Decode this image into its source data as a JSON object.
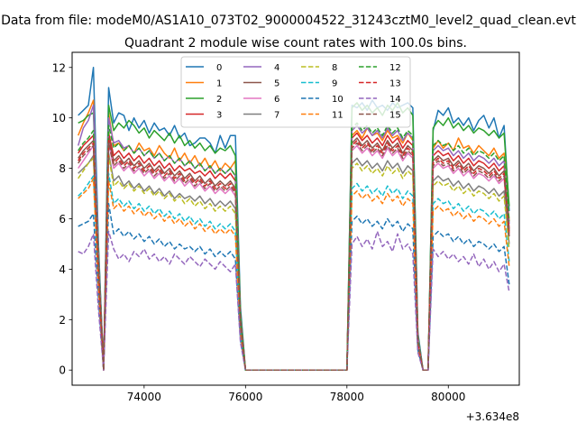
{
  "figure": {
    "suptitle": "Data from file: modeM0/AS1A10_073T02_9000004522_31243cztM0_level2_quad_clean.evt",
    "title": "Quadrant 2 module wise count rates with 100.0s bins.",
    "x_offset_label": "+3.634e8"
  },
  "chart_data": {
    "type": "line",
    "title": "Quadrant 2 module wise count rates with 100.0s bins.",
    "xlabel": "",
    "ylabel": "",
    "x_offset": 363400000,
    "xlim": [
      72580,
      81400
    ],
    "ylim": [
      -0.6,
      12.6
    ],
    "xticks": [
      74000,
      76000,
      78000,
      80000
    ],
    "xtick_labels": [
      "74000",
      "76000",
      "78000",
      "80000"
    ],
    "yticks": [
      0,
      2,
      4,
      6,
      8,
      10,
      12
    ],
    "ytick_labels": [
      "0",
      "2",
      "4",
      "6",
      "8",
      "10",
      "12"
    ],
    "grid": false,
    "legend_position": "top-center",
    "x": [
      72700,
      72800,
      72900,
      73000,
      73100,
      73200,
      73300,
      73400,
      73500,
      73600,
      73700,
      73800,
      73900,
      74000,
      74100,
      74200,
      74300,
      74400,
      74500,
      74600,
      74700,
      74800,
      74900,
      75000,
      75100,
      75200,
      75300,
      75400,
      75500,
      75600,
      75700,
      75800,
      75900,
      76000,
      78000,
      78100,
      78200,
      78300,
      78400,
      78500,
      78600,
      78700,
      78800,
      78900,
      79000,
      79100,
      79200,
      79300,
      79400,
      79500,
      79600,
      79700,
      79800,
      79900,
      80000,
      80100,
      80200,
      80300,
      80400,
      80500,
      80600,
      80700,
      80800,
      80900,
      81000,
      81100,
      81200
    ],
    "series": [
      {
        "name": "0",
        "color": "#1f77b4",
        "style": "solid",
        "values": [
          10.1,
          10.3,
          10.5,
          12.0,
          5.0,
          0,
          11.2,
          9.8,
          10.2,
          10.1,
          9.5,
          10.0,
          9.6,
          9.9,
          9.4,
          9.8,
          9.5,
          9.6,
          9.3,
          9.7,
          9.2,
          9.4,
          8.9,
          9.0,
          9.2,
          9.2,
          9.0,
          8.6,
          9.3,
          8.8,
          9.3,
          9.3,
          2.5,
          0,
          0,
          10.5,
          10.4,
          10.6,
          10.3,
          10.7,
          10.4,
          10.5,
          10.3,
          10.6,
          10.4,
          10.5,
          10.6,
          10.4,
          1.5,
          0,
          0,
          9.5,
          10.3,
          10.1,
          10.4,
          9.8,
          10.0,
          9.7,
          10.0,
          9.5,
          9.9,
          10.1,
          9.6,
          10.0,
          9.2,
          9.7,
          6.3
        ]
      },
      {
        "name": "1",
        "color": "#ff7f0e",
        "style": "solid",
        "values": [
          9.3,
          9.8,
          10.2,
          10.7,
          4.5,
          0,
          10.2,
          8.9,
          9.0,
          8.7,
          8.9,
          8.6,
          9.0,
          8.7,
          8.8,
          8.5,
          8.9,
          8.6,
          8.4,
          8.8,
          8.3,
          8.6,
          8.2,
          8.5,
          8.1,
          8.4,
          8.0,
          8.3,
          7.9,
          8.2,
          8.0,
          8.3,
          2.2,
          0,
          0,
          9.3,
          9.5,
          9.2,
          9.6,
          9.3,
          9.4,
          9.1,
          9.5,
          9.2,
          9.3,
          9.0,
          9.4,
          9.1,
          1.2,
          0,
          0,
          8.8,
          9.1,
          8.8,
          9.0,
          8.7,
          9.2,
          8.8,
          8.9,
          8.6,
          8.9,
          8.7,
          8.5,
          8.8,
          8.4,
          8.6,
          5.9
        ]
      },
      {
        "name": "2",
        "color": "#2ca02c",
        "style": "solid",
        "values": [
          9.8,
          9.9,
          10.1,
          10.2,
          4.8,
          0,
          10.5,
          9.5,
          9.8,
          9.6,
          9.9,
          9.7,
          9.4,
          9.6,
          9.2,
          9.5,
          9.3,
          9.1,
          9.4,
          9.0,
          9.3,
          8.9,
          9.1,
          8.8,
          9.0,
          8.7,
          8.9,
          8.6,
          8.8,
          8.7,
          8.9,
          8.5,
          2.3,
          0,
          0,
          10.4,
          10.6,
          10.3,
          10.5,
          10.2,
          10.4,
          10.1,
          10.5,
          10.3,
          10.6,
          10.2,
          10.4,
          10.1,
          1.4,
          0,
          0,
          9.6,
          9.9,
          9.7,
          10.0,
          9.6,
          9.8,
          9.5,
          9.7,
          9.4,
          9.6,
          9.5,
          9.3,
          9.5,
          9.2,
          9.4,
          6.5
        ]
      },
      {
        "name": "3",
        "color": "#d62728",
        "style": "solid",
        "values": [
          8.6,
          8.9,
          9.1,
          9.3,
          4.2,
          0,
          9.4,
          8.5,
          8.7,
          8.4,
          8.6,
          8.3,
          8.5,
          8.2,
          8.4,
          8.1,
          8.3,
          8.0,
          8.2,
          7.9,
          8.1,
          7.9,
          8.0,
          7.8,
          7.9,
          7.7,
          7.9,
          7.6,
          7.8,
          7.6,
          7.8,
          7.5,
          2.0,
          0,
          0,
          9.2,
          9.4,
          9.1,
          9.3,
          9.0,
          9.2,
          8.9,
          9.3,
          9.0,
          9.2,
          8.8,
          9.1,
          8.9,
          1.2,
          0,
          0,
          8.5,
          8.7,
          8.5,
          8.6,
          8.3,
          8.5,
          8.2,
          8.4,
          8.1,
          8.3,
          8.2,
          8.0,
          8.2,
          7.9,
          8.1,
          5.6
        ]
      },
      {
        "name": "4",
        "color": "#9467bd",
        "style": "solid",
        "values": [
          8.9,
          9.6,
          9.9,
          10.5,
          4.6,
          0,
          10.0,
          9.0,
          9.1,
          8.8,
          8.9,
          8.6,
          8.8,
          8.5,
          8.7,
          8.4,
          8.6,
          8.3,
          8.5,
          8.2,
          8.4,
          8.1,
          8.3,
          8.0,
          8.2,
          7.9,
          8.1,
          7.8,
          8.0,
          7.8,
          8.0,
          7.7,
          2.1,
          0,
          0,
          9.5,
          9.7,
          9.4,
          9.6,
          9.3,
          9.5,
          9.2,
          9.6,
          9.3,
          9.5,
          9.1,
          9.4,
          9.2,
          1.3,
          0,
          0,
          8.7,
          8.9,
          8.7,
          8.8,
          8.5,
          8.7,
          8.4,
          8.6,
          8.3,
          8.5,
          8.4,
          8.2,
          8.4,
          8.1,
          8.3,
          5.8
        ]
      },
      {
        "name": "5",
        "color": "#8c564b",
        "style": "solid",
        "values": [
          8.4,
          8.7,
          8.9,
          9.1,
          4.1,
          0,
          9.2,
          8.3,
          8.5,
          8.2,
          8.4,
          8.1,
          8.3,
          8.0,
          8.2,
          7.9,
          8.1,
          7.8,
          8.0,
          7.7,
          7.9,
          7.6,
          7.8,
          7.5,
          7.7,
          7.4,
          7.6,
          7.3,
          7.5,
          7.3,
          7.5,
          7.2,
          1.9,
          0,
          0,
          9.0,
          9.2,
          8.9,
          9.1,
          8.8,
          9.0,
          8.7,
          9.1,
          8.8,
          9.0,
          8.6,
          8.9,
          8.7,
          1.1,
          0,
          0,
          8.3,
          8.5,
          8.3,
          8.4,
          8.1,
          8.3,
          8.0,
          8.2,
          7.9,
          8.1,
          8.0,
          7.8,
          8.0,
          7.7,
          7.9,
          5.5
        ]
      },
      {
        "name": "6",
        "color": "#e377c2",
        "style": "solid",
        "values": [
          8.0,
          8.3,
          8.6,
          8.9,
          4.0,
          0,
          9.0,
          8.0,
          8.2,
          7.9,
          8.1,
          7.8,
          8.0,
          7.7,
          7.9,
          7.6,
          7.8,
          7.5,
          7.7,
          7.4,
          7.6,
          7.3,
          7.5,
          7.2,
          7.4,
          7.1,
          7.3,
          7.0,
          7.2,
          7.0,
          7.2,
          6.9,
          1.8,
          0,
          0,
          8.7,
          8.9,
          8.6,
          8.8,
          8.5,
          8.7,
          8.4,
          8.8,
          8.5,
          8.7,
          8.3,
          8.6,
          8.4,
          1.1,
          0,
          0,
          8.0,
          8.2,
          8.0,
          8.1,
          7.8,
          8.0,
          7.7,
          7.9,
          7.6,
          7.8,
          7.7,
          7.5,
          7.7,
          7.4,
          7.6,
          5.3
        ]
      },
      {
        "name": "7",
        "color": "#7f7f7f",
        "style": "solid",
        "values": [
          7.8,
          8.0,
          8.2,
          8.5,
          3.8,
          0,
          8.6,
          7.5,
          7.7,
          7.3,
          7.5,
          7.2,
          7.4,
          7.1,
          7.3,
          7.0,
          7.2,
          6.9,
          7.1,
          6.8,
          7.0,
          6.8,
          6.9,
          6.7,
          6.9,
          6.6,
          6.8,
          6.5,
          6.7,
          6.5,
          6.7,
          6.4,
          1.7,
          0,
          0,
          8.2,
          8.4,
          8.1,
          8.3,
          8.0,
          8.2,
          7.9,
          8.3,
          8.0,
          8.2,
          7.8,
          8.1,
          7.9,
          1.0,
          0,
          0,
          7.5,
          7.7,
          7.5,
          7.6,
          7.3,
          7.5,
          7.2,
          7.4,
          7.1,
          7.3,
          7.2,
          7.0,
          7.2,
          6.9,
          7.1,
          5.0
        ]
      },
      {
        "name": "8",
        "color": "#bcbd22",
        "style": "dashed",
        "values": [
          7.6,
          7.9,
          8.2,
          8.4,
          3.7,
          0,
          8.5,
          7.3,
          7.5,
          7.2,
          7.4,
          7.1,
          7.3,
          7.0,
          7.2,
          6.9,
          7.1,
          6.8,
          7.0,
          6.7,
          6.9,
          6.6,
          6.8,
          6.5,
          6.7,
          6.4,
          6.6,
          6.3,
          6.5,
          6.3,
          6.5,
          6.2,
          1.6,
          0,
          0,
          8.0,
          8.2,
          7.9,
          8.1,
          7.8,
          8.0,
          7.7,
          8.1,
          7.8,
          8.0,
          7.6,
          7.9,
          7.7,
          1.0,
          0,
          0,
          7.3,
          7.5,
          7.3,
          7.4,
          7.1,
          7.3,
          7.0,
          7.2,
          6.9,
          7.1,
          7.0,
          6.8,
          7.0,
          6.7,
          6.9,
          4.8
        ]
      },
      {
        "name": "9",
        "color": "#17becf",
        "style": "dashed",
        "values": [
          6.9,
          7.1,
          7.4,
          7.7,
          3.4,
          0,
          7.8,
          6.6,
          6.8,
          6.5,
          6.7,
          6.4,
          6.6,
          6.3,
          6.5,
          6.2,
          6.4,
          6.1,
          6.3,
          6.0,
          6.2,
          5.9,
          6.1,
          5.8,
          6.0,
          5.7,
          5.9,
          5.6,
          5.8,
          5.6,
          5.8,
          5.5,
          1.5,
          0,
          0,
          7.2,
          7.4,
          7.1,
          7.3,
          7.0,
          7.2,
          6.9,
          7.3,
          7.0,
          7.2,
          6.8,
          7.1,
          6.9,
          0.9,
          0,
          0,
          6.6,
          6.8,
          6.6,
          6.7,
          6.4,
          6.6,
          6.3,
          6.5,
          6.2,
          6.4,
          6.3,
          6.1,
          6.3,
          6.0,
          6.2,
          4.3
        ]
      },
      {
        "name": "10",
        "color": "#1f77b4",
        "style": "dashed",
        "values": [
          5.7,
          5.8,
          5.9,
          6.2,
          2.8,
          0,
          6.6,
          5.4,
          5.6,
          5.3,
          5.5,
          5.2,
          5.4,
          5.1,
          5.3,
          5.0,
          5.2,
          4.9,
          5.1,
          4.8,
          5.0,
          4.8,
          4.9,
          4.7,
          4.9,
          4.6,
          4.8,
          4.5,
          4.7,
          4.5,
          4.7,
          4.4,
          1.2,
          0,
          0,
          5.9,
          6.1,
          5.8,
          6.0,
          5.7,
          5.9,
          5.6,
          6.0,
          5.7,
          5.9,
          5.5,
          5.8,
          5.6,
          0.8,
          0,
          0,
          5.3,
          5.5,
          5.3,
          5.4,
          5.1,
          5.3,
          5.0,
          5.2,
          4.9,
          5.1,
          5.0,
          4.8,
          5.0,
          4.7,
          4.9,
          3.4
        ]
      },
      {
        "name": "11",
        "color": "#ff7f0e",
        "style": "dashed",
        "values": [
          6.8,
          7.0,
          7.2,
          7.6,
          3.3,
          0,
          7.5,
          6.4,
          6.6,
          6.3,
          6.5,
          6.2,
          6.4,
          6.1,
          6.3,
          6.0,
          6.2,
          5.9,
          6.1,
          5.8,
          6.0,
          5.7,
          5.9,
          5.6,
          5.8,
          5.5,
          5.7,
          5.4,
          5.6,
          5.4,
          5.6,
          5.3,
          1.4,
          0,
          0,
          6.9,
          7.1,
          6.8,
          7.0,
          6.7,
          6.9,
          6.6,
          7.0,
          6.7,
          6.9,
          6.5,
          6.8,
          6.6,
          0.9,
          0,
          0,
          6.3,
          6.5,
          6.3,
          6.4,
          6.1,
          6.3,
          6.0,
          6.2,
          5.9,
          6.1,
          6.0,
          5.8,
          6.0,
          5.7,
          5.9,
          4.1
        ]
      },
      {
        "name": "12",
        "color": "#2ca02c",
        "style": "dashed",
        "values": [
          8.7,
          9.0,
          9.2,
          9.5,
          4.3,
          0,
          9.7,
          8.8,
          9.0,
          8.7,
          8.9,
          8.6,
          8.8,
          8.5,
          8.7,
          8.4,
          8.6,
          8.3,
          8.5,
          8.2,
          8.4,
          8.1,
          8.3,
          8.0,
          8.2,
          7.9,
          8.1,
          7.8,
          8.0,
          7.8,
          8.0,
          7.7,
          2.0,
          0,
          0,
          9.6,
          9.8,
          9.5,
          9.7,
          9.4,
          9.6,
          9.3,
          9.7,
          9.4,
          9.6,
          9.2,
          9.5,
          9.3,
          1.2,
          0,
          0,
          8.9,
          9.1,
          8.9,
          9.0,
          8.7,
          8.9,
          8.6,
          8.8,
          8.5,
          8.7,
          8.6,
          8.4,
          8.6,
          8.3,
          8.5,
          5.9
        ]
      },
      {
        "name": "13",
        "color": "#d62728",
        "style": "dashed",
        "values": [
          8.3,
          8.6,
          8.8,
          9.0,
          4.0,
          0,
          9.1,
          8.2,
          8.4,
          8.1,
          8.3,
          8.0,
          8.2,
          7.9,
          8.1,
          7.8,
          8.0,
          7.7,
          7.9,
          7.6,
          7.8,
          7.5,
          7.7,
          7.4,
          7.6,
          7.3,
          7.5,
          7.2,
          7.4,
          7.2,
          7.4,
          7.1,
          1.9,
          0,
          0,
          8.9,
          9.1,
          8.8,
          9.0,
          8.7,
          8.9,
          8.6,
          9.0,
          8.7,
          8.9,
          8.5,
          8.8,
          8.6,
          1.1,
          0,
          0,
          8.2,
          8.4,
          8.2,
          8.3,
          8.0,
          8.2,
          7.9,
          8.1,
          7.8,
          8.0,
          7.9,
          7.7,
          7.9,
          7.6,
          7.8,
          5.4
        ]
      },
      {
        "name": "14",
        "color": "#9467bd",
        "style": "dashed",
        "values": [
          4.7,
          4.6,
          4.9,
          5.4,
          2.4,
          0,
          5.5,
          4.8,
          4.4,
          4.6,
          4.3,
          4.7,
          4.5,
          4.8,
          4.4,
          4.6,
          4.3,
          4.5,
          4.2,
          4.6,
          4.4,
          4.2,
          4.5,
          4.3,
          4.1,
          4.4,
          4.2,
          4.0,
          4.3,
          4.1,
          3.9,
          4.2,
          1.1,
          0,
          0,
          5.0,
          5.3,
          4.9,
          5.2,
          4.8,
          5.5,
          4.9,
          5.1,
          4.7,
          5.4,
          4.8,
          5.0,
          4.6,
          0.7,
          0,
          0,
          4.8,
          4.5,
          4.7,
          4.4,
          4.6,
          4.3,
          4.5,
          4.2,
          4.6,
          4.1,
          4.4,
          4.0,
          4.3,
          3.9,
          4.2,
          3.1
        ]
      },
      {
        "name": "15",
        "color": "#8c564b",
        "style": "dashed",
        "values": [
          8.2,
          8.5,
          8.7,
          8.9,
          3.9,
          0,
          9.0,
          8.1,
          8.3,
          8.0,
          8.2,
          7.9,
          8.1,
          7.8,
          8.0,
          7.7,
          7.9,
          7.6,
          7.8,
          7.5,
          7.7,
          7.4,
          7.6,
          7.3,
          7.5,
          7.2,
          7.4,
          7.1,
          7.3,
          7.1,
          7.3,
          7.0,
          1.8,
          0,
          0,
          8.8,
          9.0,
          8.7,
          8.9,
          8.6,
          8.8,
          8.5,
          8.9,
          8.6,
          8.8,
          8.4,
          8.7,
          8.5,
          1.1,
          0,
          0,
          8.1,
          8.3,
          8.1,
          8.2,
          7.9,
          8.1,
          7.8,
          8.0,
          7.7,
          7.9,
          7.8,
          7.6,
          7.8,
          7.5,
          7.7,
          5.3
        ]
      }
    ]
  }
}
